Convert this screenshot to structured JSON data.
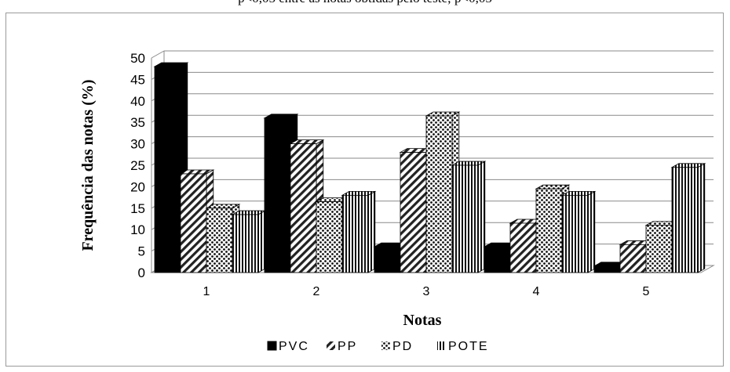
{
  "caption_fragment": "p<0,05 entre as notas obtidas pelo teste; p<0,05",
  "chart_data": {
    "type": "bar",
    "title": "",
    "xlabel": "Notas",
    "ylabel": "Frequência das notas (%)",
    "categories": [
      "1",
      "2",
      "3",
      "4",
      "5"
    ],
    "ylim": [
      0,
      50
    ],
    "yticks": [
      0,
      5,
      10,
      15,
      20,
      25,
      30,
      35,
      40,
      45,
      50
    ],
    "grid": true,
    "legend_position": "bottom",
    "series": [
      {
        "name": "PVC",
        "values": [
          48,
          36,
          6,
          6,
          1.5
        ],
        "pattern": "solid",
        "color": "#000000"
      },
      {
        "name": "PP",
        "values": [
          23,
          30,
          28,
          11.5,
          6.5
        ],
        "pattern": "diagonal",
        "color": "#000000"
      },
      {
        "name": "PD",
        "values": [
          15,
          16.5,
          36.5,
          19.5,
          11
        ],
        "pattern": "dots",
        "color": "#000000"
      },
      {
        "name": "POTE",
        "values": [
          13.5,
          18,
          25,
          18,
          24.5
        ],
        "pattern": "vertical",
        "color": "#000000"
      }
    ]
  }
}
